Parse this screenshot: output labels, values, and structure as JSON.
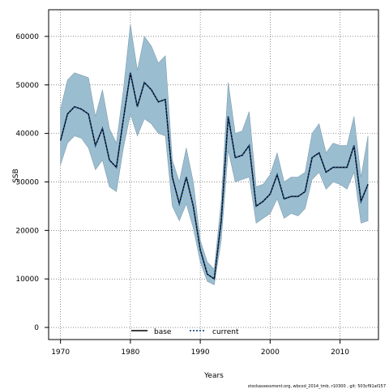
{
  "chart_data": {
    "type": "line",
    "xlabel": "Years",
    "ylabel": "SSB",
    "xlim": [
      1968.3,
      2015.5
    ],
    "ylim": [
      -2500,
      65500
    ],
    "x_ticks": [
      1970,
      1980,
      1990,
      2000,
      2010
    ],
    "y_ticks": [
      0,
      10000,
      20000,
      30000,
      40000,
      50000,
      60000
    ],
    "grid": true,
    "legend_placement": "bottom-center",
    "colors": {
      "band": "#9bbdd0",
      "band_edge": "#7f9eb0",
      "base": "#000000",
      "current": "#1f4f8a"
    },
    "x": [
      1970,
      1971,
      1972,
      1973,
      1974,
      1975,
      1976,
      1977,
      1978,
      1979,
      1980,
      1981,
      1982,
      1983,
      1984,
      1985,
      1986,
      1987,
      1988,
      1989,
      1990,
      1991,
      1992,
      1993,
      1994,
      1995,
      1996,
      1997,
      1998,
      1999,
      2000,
      2001,
      2002,
      2003,
      2004,
      2005,
      2006,
      2007,
      2008,
      2009,
      2010,
      2011,
      2012,
      2013,
      2014
    ],
    "series": [
      {
        "name": "base",
        "style": "solid",
        "values": [
          38500,
          44000,
          45500,
          45000,
          44000,
          37500,
          41000,
          34500,
          33000,
          43000,
          52500,
          45500,
          50500,
          49000,
          46500,
          47000,
          31000,
          25500,
          31000,
          25000,
          16000,
          11000,
          10000,
          22000,
          43500,
          35000,
          35500,
          37500,
          25000,
          26000,
          27500,
          31500,
          26500,
          27000,
          27000,
          28000,
          35000,
          36000,
          32000,
          33000,
          33000,
          33000,
          37500,
          26000,
          29500
        ]
      },
      {
        "name": "current",
        "style": "dotted",
        "values": [
          38500,
          44000,
          45500,
          45000,
          44000,
          37500,
          41000,
          34500,
          33000,
          43000,
          52500,
          45500,
          50500,
          49000,
          46500,
          47000,
          31000,
          25500,
          31000,
          25000,
          16000,
          11000,
          10000,
          22000,
          43500,
          35000,
          35500,
          37500,
          25000,
          26000,
          27500,
          31500,
          26500,
          27000,
          27000,
          28000,
          35000,
          36000,
          32000,
          33000,
          33000,
          33000,
          37500,
          26000,
          29500
        ]
      }
    ],
    "upper": [
      45000,
      51000,
      52500,
      52000,
      51500,
      43500,
      49000,
      41000,
      38000,
      49000,
      62500,
      53000,
      60000,
      58000,
      54500,
      56000,
      34500,
      30000,
      37000,
      30000,
      18000,
      13500,
      12000,
      26000,
      50500,
      40000,
      40500,
      44500,
      29000,
      29500,
      31500,
      36000,
      30000,
      31000,
      31000,
      32000,
      40000,
      42000,
      36000,
      38000,
      37500,
      37500,
      43500,
      31000,
      39500
    ],
    "lower": [
      33500,
      38000,
      39500,
      39000,
      37000,
      32500,
      34500,
      29000,
      28000,
      37000,
      44000,
      39500,
      43000,
      42000,
      40000,
      39500,
      25000,
      22000,
      25500,
      20500,
      13500,
      9500,
      8800,
      18000,
      36500,
      30000,
      30500,
      31000,
      21500,
      22500,
      23500,
      26500,
      22500,
      23500,
      23000,
      24500,
      30500,
      32000,
      28500,
      30000,
      29500,
      28500,
      32000,
      21500,
      22000
    ],
    "legend": [
      {
        "label": "base",
        "style": "solid"
      },
      {
        "label": "current",
        "style": "dotted"
      }
    ],
    "footer": "stockassessment.org, wbcod_2014_tmb, r10300 , git: 503cf91af157"
  }
}
